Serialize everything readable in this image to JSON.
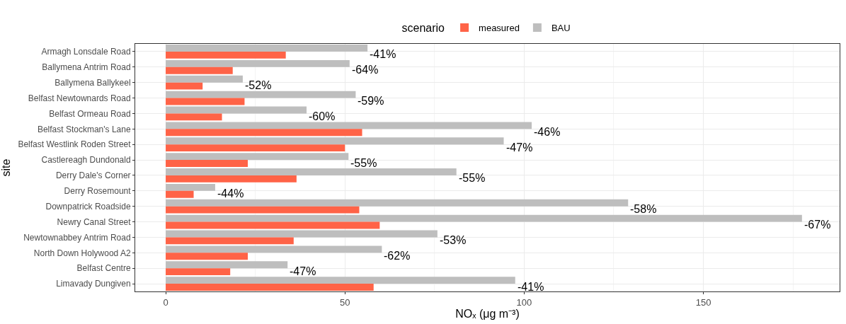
{
  "chart_data": {
    "type": "bar",
    "orientation": "horizontal",
    "xlabel": "NOₓ (μg m⁻³)",
    "ylabel": "site",
    "legend_title": "scenario",
    "legend": "top",
    "categories": [
      "Armagh Lonsdale Road",
      "Ballymena Antrim Road",
      "Ballymena Ballykeel",
      "Belfast Newtownards Road",
      "Belfast Ormeau Road",
      "Belfast Stockman's Lane",
      "Belfast Westlink Roden Street",
      "Castlereagh Dundonald",
      "Derry Dale's Corner",
      "Derry Rosemount",
      "Downpatrick Roadside",
      "Newry Canal Street",
      "Newtownabbey Antrim Road",
      "North Down Holywood A2",
      "Belfast Centre",
      "Limavady Dungiven"
    ],
    "series": [
      {
        "name": "measured",
        "color": "#ff6347",
        "values": [
          33.5,
          18.7,
          10.3,
          22.0,
          15.7,
          54.8,
          50.0,
          22.9,
          36.5,
          7.8,
          54.0,
          59.7,
          35.7,
          22.9,
          18.0,
          58.0
        ]
      },
      {
        "name": "BAU",
        "color": "#bebebe",
        "values": [
          56.3,
          51.3,
          21.5,
          53.0,
          39.3,
          102.1,
          94.3,
          51.0,
          81.1,
          13.8,
          129.0,
          177.5,
          75.8,
          60.3,
          34.0,
          97.5
        ]
      }
    ],
    "annotations": [
      {
        "text": "-41%",
        "x": 56.3,
        "y": "Armagh Lonsdale Road"
      },
      {
        "text": "-64%",
        "x": 51.3,
        "y": "Ballymena Antrim Road"
      },
      {
        "text": "-52%",
        "x": 21.5,
        "y": "Ballymena Ballykeel"
      },
      {
        "text": "-59%",
        "x": 53.0,
        "y": "Belfast Newtownards Road"
      },
      {
        "text": "-60%",
        "x": 39.3,
        "y": "Belfast Ormeau Road"
      },
      {
        "text": "-46%",
        "x": 102.1,
        "y": "Belfast Stockman's Lane"
      },
      {
        "text": "-47%",
        "x": 94.3,
        "y": "Belfast Westlink Roden Street"
      },
      {
        "text": "-55%",
        "x": 51.0,
        "y": "Castlereagh Dundonald"
      },
      {
        "text": "-55%",
        "x": 81.1,
        "y": "Derry Dale's Corner"
      },
      {
        "text": "-44%",
        "x": 13.8,
        "y": "Derry Rosemount"
      },
      {
        "text": "-58%",
        "x": 129.0,
        "y": "Downpatrick Roadside"
      },
      {
        "text": "-67%",
        "x": 177.5,
        "y": "Newry Canal Street"
      },
      {
        "text": "-53%",
        "x": 75.8,
        "y": "Newtownabbey Antrim Road"
      },
      {
        "text": "-62%",
        "x": 60.3,
        "y": "North Down Holywood A2"
      },
      {
        "text": "-47%",
        "x": 34.0,
        "y": "Belfast Centre"
      },
      {
        "text": "-41%",
        "x": 97.5,
        "y": "Limavady Dungiven"
      }
    ],
    "xlim": [
      -8.5,
      188
    ],
    "xticks": [
      0,
      50,
      100,
      150
    ],
    "grid": true
  }
}
